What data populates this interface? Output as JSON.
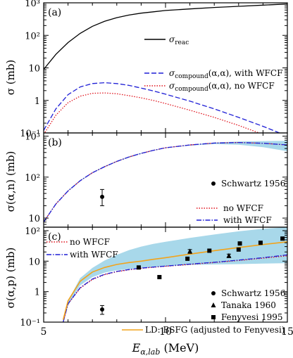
{
  "figure": {
    "xlabel_main": "E",
    "xlabel_sub": "α,lab",
    "xlabel_unit": " (MeV)",
    "x_ticks": [
      "5",
      "10",
      "15"
    ],
    "xlim": [
      5,
      15
    ]
  },
  "colors": {
    "black": "#000000",
    "blue": "#1f1fd6",
    "red": "#e0141e",
    "orange": "#f2a31b",
    "band": "#a8d8ea"
  },
  "chart_data": [
    {
      "type": "line",
      "panel_label": "(a)",
      "ylabel": "σ (mb)",
      "yscale": "log",
      "ylim": [
        0.1,
        1000
      ],
      "y_ticks": [
        "10⁻¹",
        "1",
        "10",
        "10²",
        "10³"
      ],
      "x": [
        5.0,
        5.5,
        6.0,
        6.5,
        7.0,
        7.5,
        8.0,
        8.5,
        9.0,
        9.5,
        10.0,
        11.0,
        12.0,
        13.0,
        14.0,
        15.0
      ],
      "series": [
        {
          "name": "σ_reac",
          "label_main": "σ",
          "label_sub": "reac",
          "label_rest": "",
          "color": "#000000",
          "dash": "solid",
          "values": [
            9,
            26,
            60,
            115,
            190,
            270,
            350,
            420,
            480,
            530,
            580,
            650,
            720,
            780,
            850,
            920
          ]
        },
        {
          "name": "σ_compound(α,α), with WFCF",
          "label_main": "σ",
          "label_sub": "compound",
          "label_rest": "(α,α), with WFCF",
          "color": "#1f1fd6",
          "dash": "longdash",
          "values": [
            0.12,
            0.55,
            1.5,
            2.6,
            3.3,
            3.5,
            3.3,
            2.9,
            2.4,
            1.95,
            1.55,
            0.95,
            0.55,
            0.3,
            0.16,
            0.08
          ]
        },
        {
          "name": "σ_compound(α,α), no WFCF",
          "label_main": "σ",
          "label_sub": "compound",
          "label_rest": "(α,α), no WFCF",
          "color": "#e0141e",
          "dash": "dotted",
          "values": [
            0.09,
            0.35,
            0.85,
            1.35,
            1.65,
            1.7,
            1.6,
            1.4,
            1.2,
            1.0,
            0.8,
            0.5,
            0.3,
            0.17,
            0.09,
            0.05
          ]
        }
      ]
    },
    {
      "type": "line",
      "panel_label": "(b)",
      "ylabel": "σ(α,n) (mb)",
      "yscale": "log",
      "ylim": [
        6,
        1200
      ],
      "y_ticks": [
        "10",
        "10²",
        "10³"
      ],
      "x": [
        5.0,
        5.5,
        6.0,
        6.5,
        7.0,
        7.5,
        8.0,
        8.5,
        9.0,
        9.5,
        10.0,
        11.0,
        12.0,
        13.0,
        14.0,
        15.0
      ],
      "band": {
        "lower": [
          8,
          22,
          45,
          80,
          125,
          175,
          235,
          300,
          370,
          440,
          510,
          590,
          640,
          620,
          540,
          430
        ],
        "upper": [
          8.5,
          23,
          48,
          85,
          132,
          185,
          250,
          320,
          390,
          460,
          525,
          620,
          700,
          740,
          760,
          770
        ]
      },
      "series": [
        {
          "name": "no WFCF",
          "color": "#e0141e",
          "dash": "dotted",
          "values": [
            8,
            22,
            46,
            82,
            128,
            180,
            242,
            310,
            380,
            450,
            520,
            610,
            680,
            700,
            670,
            610
          ]
        },
        {
          "name": "with WFCF",
          "color": "#1f1fd6",
          "dash": "dashdot",
          "values": [
            8,
            22,
            46,
            82,
            128,
            180,
            242,
            310,
            380,
            450,
            520,
            610,
            680,
            700,
            670,
            610
          ]
        }
      ],
      "points": [
        {
          "name": "Schwartz 1956",
          "marker": "circle",
          "data": [
            {
              "x": 7.4,
              "y": 33,
              "err": [
                20,
                50
              ]
            }
          ]
        }
      ]
    },
    {
      "type": "line",
      "panel_label": "(c)",
      "ylabel": "σ(α,p) (mb)",
      "yscale": "log",
      "ylim": [
        0.1,
        130
      ],
      "y_ticks": [
        "10⁻¹",
        "1",
        "10",
        "10²"
      ],
      "x": [
        5.8,
        6.0,
        6.5,
        7.0,
        7.5,
        8.0,
        8.5,
        9.0,
        9.5,
        10.0,
        11.0,
        12.0,
        13.0,
        14.0,
        15.0
      ],
      "band": {
        "lower": [
          0.1,
          0.35,
          1.6,
          3.0,
          4.2,
          5.0,
          5.5,
          6.0,
          6.4,
          6.8,
          7.5,
          7.8,
          8.0,
          8.3,
          8.6
        ],
        "upper": [
          0.13,
          0.5,
          2.8,
          6.0,
          10.5,
          16.0,
          23.0,
          30.0,
          37.0,
          43.0,
          58.0,
          75.0,
          95.0,
          115.0,
          130.0
        ]
      },
      "series": [
        {
          "name": "no WFCF",
          "color": "#e0141e",
          "dash": "dotted",
          "values": [
            0.1,
            0.4,
            1.3,
            2.5,
            3.6,
            4.5,
            5.2,
            5.8,
            6.3,
            6.8,
            7.8,
            9.0,
            10.5,
            12.5,
            15.0
          ]
        },
        {
          "name": "with WFCF",
          "color": "#1f1fd6",
          "dash": "dashdot",
          "values": [
            0.1,
            0.4,
            1.35,
            2.6,
            3.7,
            4.6,
            5.3,
            5.9,
            6.4,
            6.9,
            8.0,
            9.2,
            10.8,
            13.0,
            16.0
          ]
        },
        {
          "name": "LD: BSFG (adjusted to Fenyvesi)",
          "color": "#f2a31b",
          "dash": "solid",
          "values": [
            0.12,
            0.5,
            2.2,
            4.4,
            6.2,
            7.8,
            9.0,
            10.0,
            11.5,
            13.0,
            17.0,
            22.0,
            28.0,
            35.0,
            43.0
          ]
        }
      ],
      "points": [
        {
          "name": "Schwartz 1956",
          "marker": "circle",
          "data": [
            {
              "x": 7.4,
              "y": 0.26,
              "err": [
                0.18,
                0.35
              ]
            }
          ]
        },
        {
          "name": "Tanaka 1960",
          "marker": "triangle",
          "data": [
            {
              "x": 11.0,
              "y": 21,
              "err": [
                18,
                24
              ]
            },
            {
              "x": 12.6,
              "y": 15,
              "err": [
                13,
                17
              ]
            }
          ]
        },
        {
          "name": "Fenyvesi 1995",
          "marker": "square",
          "data": [
            {
              "x": 8.9,
              "y": 6.2
            },
            {
              "x": 9.75,
              "y": 3.0
            },
            {
              "x": 10.9,
              "y": 12.0
            },
            {
              "x": 11.8,
              "y": 22.0
            },
            {
              "x": 13.0,
              "y": 24.0
            },
            {
              "x": 13.05,
              "y": 38.0
            },
            {
              "x": 13.9,
              "y": 40.0
            },
            {
              "x": 14.8,
              "y": 55.0
            }
          ]
        }
      ]
    }
  ]
}
